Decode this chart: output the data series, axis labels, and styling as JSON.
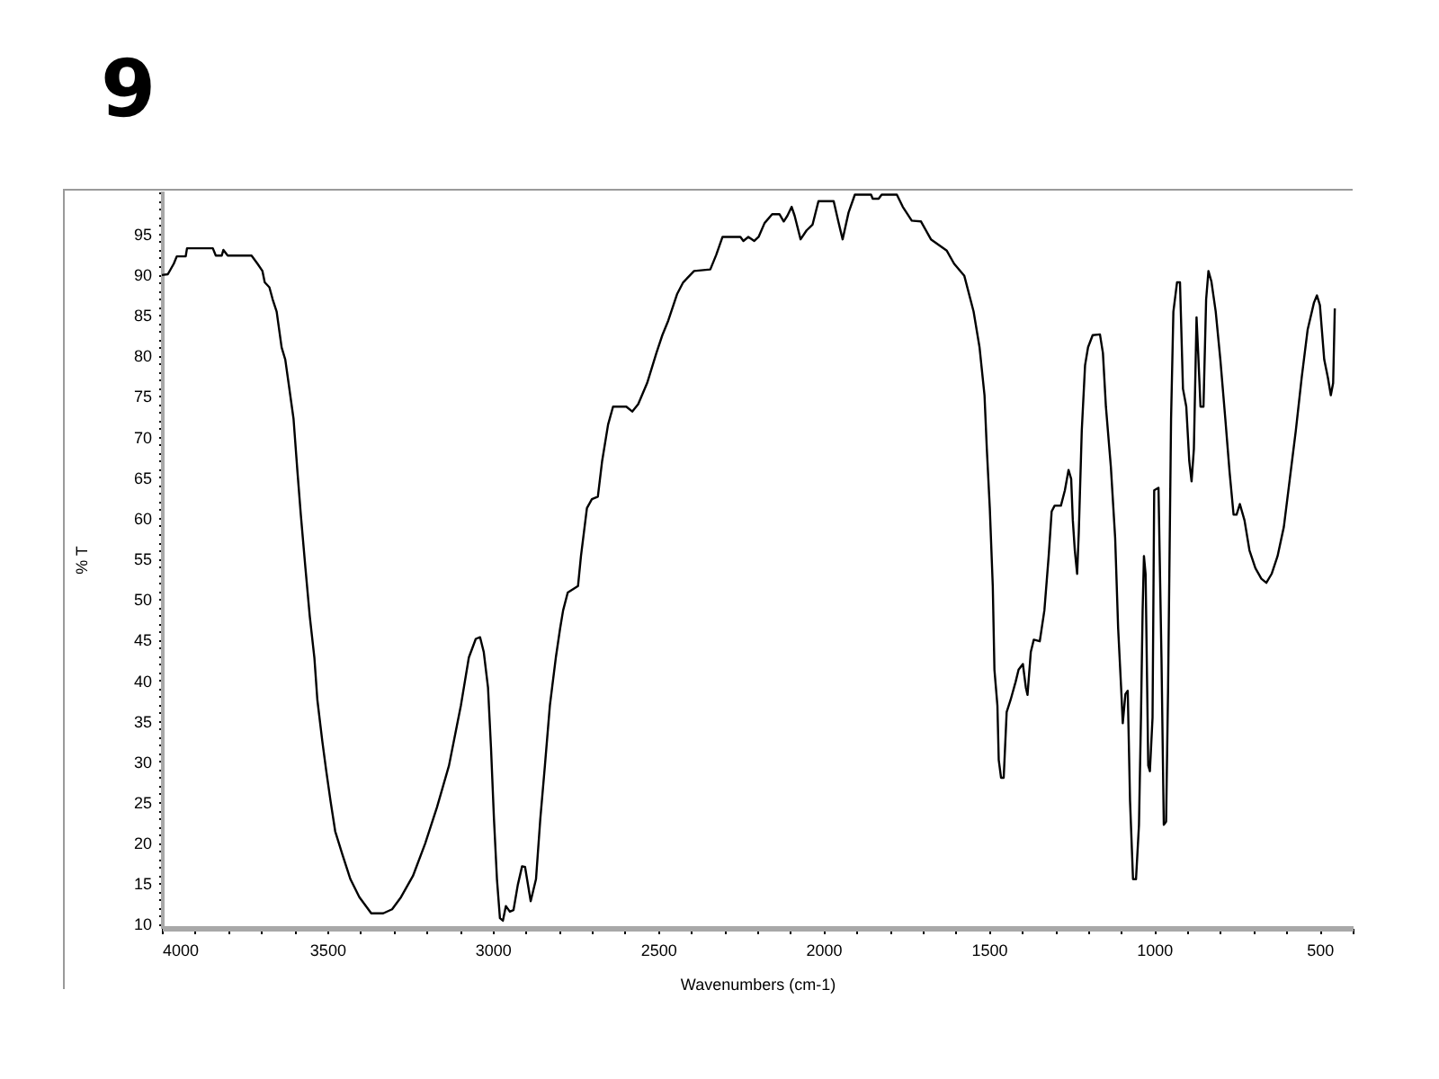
{
  "chart_data": {
    "type": "line",
    "title": "9",
    "xlabel": "Wavenumbers (cm-1)",
    "ylabel": "% T",
    "xlim": [
      4000,
      400
    ],
    "ylim": [
      9.5,
      100.3
    ],
    "xticks": [
      4000,
      {
        "value": 3900,
        "label": null
      },
      {
        "value": 3800,
        "label": null
      },
      {
        "value": 3700,
        "label": null
      },
      {
        "value": 3600,
        "label": null
      },
      3500,
      {
        "value": 3400,
        "label": null
      },
      {
        "value": 3300,
        "label": null
      },
      {
        "value": 3200,
        "label": null
      },
      {
        "value": 3100,
        "label": null
      },
      3000,
      {
        "value": 2900,
        "label": null
      },
      {
        "value": 2800,
        "label": null
      },
      {
        "value": 2700,
        "label": null
      },
      {
        "value": 2600,
        "label": null
      },
      2500,
      {
        "value": 2400,
        "label": null
      },
      {
        "value": 2300,
        "label": null
      },
      {
        "value": 2200,
        "label": null
      },
      {
        "value": 2100,
        "label": null
      },
      2000,
      {
        "value": 1900,
        "label": null
      },
      {
        "value": 1800,
        "label": null
      },
      {
        "value": 1700,
        "label": null
      },
      {
        "value": 1600,
        "label": null
      },
      1500,
      {
        "value": 1400,
        "label": null
      },
      {
        "value": 1300,
        "label": null
      },
      {
        "value": 1200,
        "label": null
      },
      {
        "value": 1100,
        "label": null
      },
      1000,
      {
        "value": 900,
        "label": null
      },
      {
        "value": 800,
        "label": null
      },
      {
        "value": 700,
        "label": null
      },
      {
        "value": 600,
        "label": null
      },
      500,
      {
        "value": 400,
        "label": null
      }
    ],
    "yticks": [
      10,
      {
        "value": 11,
        "label": null
      },
      {
        "value": 12,
        "label": null
      },
      {
        "value": 13,
        "label": null
      },
      {
        "value": 14,
        "label": null
      },
      15,
      {
        "value": 16,
        "label": null
      },
      {
        "value": 17,
        "label": null
      },
      {
        "value": 18,
        "label": null
      },
      {
        "value": 19,
        "label": null
      },
      20,
      {
        "value": 21,
        "label": null
      },
      {
        "value": 22,
        "label": null
      },
      {
        "value": 23,
        "label": null
      },
      {
        "value": 24,
        "label": null
      },
      25,
      {
        "value": 26,
        "label": null
      },
      {
        "value": 27,
        "label": null
      },
      {
        "value": 28,
        "label": null
      },
      {
        "value": 29,
        "label": null
      },
      30,
      {
        "value": 31,
        "label": null
      },
      {
        "value": 32,
        "label": null
      },
      {
        "value": 33,
        "label": null
      },
      {
        "value": 34,
        "label": null
      },
      35,
      {
        "value": 36,
        "label": null
      },
      {
        "value": 37,
        "label": null
      },
      {
        "value": 38,
        "label": null
      },
      {
        "value": 39,
        "label": null
      },
      40,
      {
        "value": 41,
        "label": null
      },
      {
        "value": 42,
        "label": null
      },
      {
        "value": 43,
        "label": null
      },
      {
        "value": 44,
        "label": null
      },
      45,
      {
        "value": 46,
        "label": null
      },
      {
        "value": 47,
        "label": null
      },
      {
        "value": 48,
        "label": null
      },
      {
        "value": 49,
        "label": null
      },
      50,
      {
        "value": 51,
        "label": null
      },
      {
        "value": 52,
        "label": null
      },
      {
        "value": 53,
        "label": null
      },
      {
        "value": 54,
        "label": null
      },
      55,
      {
        "value": 56,
        "label": null
      },
      {
        "value": 57,
        "label": null
      },
      {
        "value": 58,
        "label": null
      },
      {
        "value": 59,
        "label": null
      },
      60,
      {
        "value": 61,
        "label": null
      },
      {
        "value": 62,
        "label": null
      },
      {
        "value": 63,
        "label": null
      },
      {
        "value": 64,
        "label": null
      },
      65,
      {
        "value": 66,
        "label": null
      },
      {
        "value": 67,
        "label": null
      },
      {
        "value": 68,
        "label": null
      },
      {
        "value": 69,
        "label": null
      },
      70,
      {
        "value": 71,
        "label": null
      },
      {
        "value": 72,
        "label": null
      },
      {
        "value": 73,
        "label": null
      },
      {
        "value": 74,
        "label": null
      },
      75,
      {
        "value": 76,
        "label": null
      },
      {
        "value": 77,
        "label": null
      },
      {
        "value": 78,
        "label": null
      },
      {
        "value": 79,
        "label": null
      },
      80,
      {
        "value": 81,
        "label": null
      },
      {
        "value": 82,
        "label": null
      },
      {
        "value": 83,
        "label": null
      },
      {
        "value": 84,
        "label": null
      },
      85,
      {
        "value": 86,
        "label": null
      },
      {
        "value": 87,
        "label": null
      },
      {
        "value": 88,
        "label": null
      },
      {
        "value": 89,
        "label": null
      },
      90,
      {
        "value": 91,
        "label": null
      },
      {
        "value": 92,
        "label": null
      },
      {
        "value": 93,
        "label": null
      },
      {
        "value": 94,
        "label": null
      },
      95,
      {
        "value": 96,
        "label": null
      },
      {
        "value": 97,
        "label": null
      },
      {
        "value": 98,
        "label": null
      },
      {
        "value": 99,
        "label": null
      },
      {
        "value": 100,
        "label": null
      }
    ],
    "x": [
      4000,
      3982,
      3964,
      3955,
      3928,
      3924,
      3846,
      3837,
      3819,
      3814,
      3801,
      3729,
      3711,
      3696,
      3689,
      3675,
      3665,
      3653,
      3638,
      3627,
      3617,
      3602,
      3590,
      3580,
      3566,
      3553,
      3539,
      3530,
      3515,
      3503,
      3490,
      3476,
      3454,
      3430,
      3403,
      3367,
      3331,
      3304,
      3277,
      3241,
      3204,
      3168,
      3132,
      3096,
      3072,
      3051,
      3038,
      3027,
      3014,
      3005,
      2996,
      2987,
      2978,
      2969,
      2960,
      2948,
      2937,
      2924,
      2911,
      2902,
      2885,
      2869,
      2856,
      2842,
      2827,
      2809,
      2796,
      2787,
      2773,
      2742,
      2733,
      2715,
      2700,
      2682,
      2669,
      2651,
      2636,
      2596,
      2578,
      2560,
      2533,
      2505,
      2487,
      2469,
      2442,
      2424,
      2391,
      2342,
      2324,
      2305,
      2251,
      2242,
      2227,
      2209,
      2196,
      2178,
      2155,
      2133,
      2120,
      2109,
      2096,
      2087,
      2069,
      2051,
      2033,
      2015,
      1969,
      1955,
      1942,
      1924,
      1905,
      1856,
      1851,
      1833,
      1824,
      1778,
      1760,
      1733,
      1705,
      1675,
      1627,
      1605,
      1574,
      1546,
      1528,
      1513,
      1506,
      1497,
      1488,
      1483,
      1474,
      1470,
      1463,
      1455,
      1446,
      1434,
      1419,
      1410,
      1397,
      1388,
      1383,
      1373,
      1364,
      1346,
      1332,
      1319,
      1310,
      1301,
      1282,
      1270,
      1259,
      1251,
      1246,
      1240,
      1233,
      1228,
      1219,
      1209,
      1200,
      1186,
      1164,
      1155,
      1146,
      1131,
      1118,
      1109,
      1100,
      1095,
      1087,
      1080,
      1073,
      1064,
      1055,
      1046,
      1040,
      1035,
      1031,
      1026,
      1018,
      1013,
      1005,
      1000,
      987,
      978,
      971,
      964,
      958,
      949,
      942,
      931,
      922,
      913,
      903,
      894,
      887,
      880,
      872,
      867,
      860,
      851,
      843,
      836,
      827,
      814,
      800,
      785,
      772,
      760,
      751,
      741,
      727,
      712,
      694,
      676,
      661,
      645,
      627,
      608,
      590,
      572,
      554,
      536,
      517,
      508,
      499,
      486,
      475,
      466,
      459,
      454
    ],
    "series": [
      {
        "color": "#000000",
        "values": [
          89.9,
          90.0,
          91.3,
          92.2,
          92.2,
          93.2,
          93.2,
          92.3,
          92.3,
          93.0,
          92.3,
          92.3,
          91.3,
          90.4,
          89.0,
          88.4,
          86.9,
          85.4,
          81.0,
          79.5,
          76.6,
          72.2,
          65.6,
          60.4,
          53.8,
          47.9,
          42.8,
          37.6,
          32.5,
          28.8,
          25.1,
          21.4,
          18.5,
          15.5,
          13.3,
          11.3,
          11.3,
          11.8,
          13.3,
          15.9,
          19.9,
          24.4,
          29.5,
          36.9,
          42.8,
          45.1,
          45.3,
          43.5,
          39.1,
          31.7,
          22.9,
          15.5,
          10.7,
          10.4,
          12.2,
          11.5,
          11.7,
          14.8,
          17.1,
          17.0,
          12.8,
          15.5,
          22.9,
          29.5,
          36.9,
          42.8,
          46.4,
          48.6,
          50.8,
          51.6,
          55.3,
          61.2,
          62.3,
          62.6,
          67.0,
          71.5,
          73.7,
          73.7,
          73.1,
          74.0,
          76.6,
          80.3,
          82.5,
          84.3,
          87.6,
          89.0,
          90.4,
          90.6,
          92.4,
          94.6,
          94.6,
          94.1,
          94.6,
          94.1,
          94.6,
          96.3,
          97.4,
          97.4,
          96.5,
          97.2,
          98.3,
          97.2,
          94.3,
          95.4,
          96.1,
          99.0,
          99.0,
          96.5,
          94.3,
          97.6,
          99.8,
          99.8,
          99.3,
          99.3,
          99.8,
          99.8,
          98.3,
          96.6,
          96.5,
          94.3,
          92.9,
          91.3,
          89.8,
          85.4,
          81.0,
          75.1,
          68.5,
          61.2,
          51.6,
          41.3,
          36.9,
          30.2,
          28.0,
          28.0,
          36.1,
          37.6,
          39.8,
          41.3,
          42.0,
          39.1,
          38.2,
          43.5,
          45.0,
          44.8,
          48.6,
          55.3,
          60.8,
          61.5,
          61.5,
          63.4,
          65.9,
          64.8,
          59.7,
          56.0,
          53.1,
          58.2,
          70.7,
          78.8,
          81.0,
          82.5,
          82.6,
          80.3,
          73.7,
          66.3,
          57.5,
          46.4,
          39.1,
          34.7,
          38.3,
          38.7,
          25.1,
          15.5,
          15.5,
          22.2,
          35.4,
          48.6,
          55.3,
          53.1,
          29.5,
          28.8,
          35.4,
          63.4,
          63.7,
          42.8,
          22.2,
          22.6,
          39.1,
          72.2,
          85.4,
          89.0,
          89.0,
          75.9,
          73.7,
          67.0,
          64.5,
          68.5,
          84.7,
          80.3,
          73.7,
          73.7,
          86.9,
          90.4,
          89.1,
          85.4,
          79.5,
          72.2,
          65.6,
          60.4,
          60.4,
          61.7,
          59.7,
          56.0,
          53.8,
          52.5,
          52.0,
          53.1,
          55.3,
          58.9,
          64.8,
          70.7,
          77.3,
          83.2,
          86.5,
          87.4,
          86.2,
          79.5,
          77.3,
          75.1,
          76.6,
          85.8
        ]
      }
    ]
  }
}
